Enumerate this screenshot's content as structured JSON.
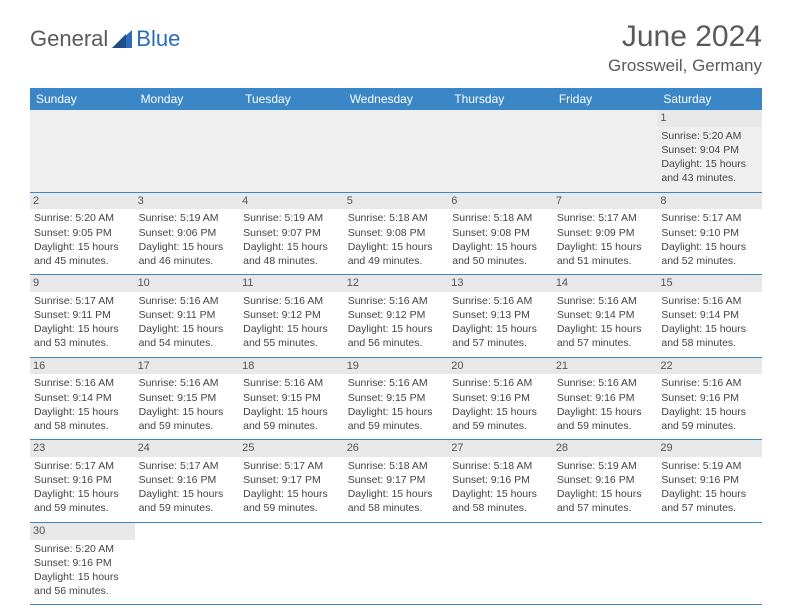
{
  "logo": {
    "textGeneral": "General",
    "textBlue": "Blue"
  },
  "title": "June 2024",
  "location": "Grossweil, Germany",
  "colors": {
    "headerBg": "#3b86c6",
    "headerText": "#ffffff",
    "dayNumBg": "#e8e8e8",
    "rowDivider": "#3b86c6",
    "firstRowBg": "#efefef",
    "bodyText": "#444444",
    "titleText": "#5a5a5a"
  },
  "dayHeaders": [
    "Sunday",
    "Monday",
    "Tuesday",
    "Wednesday",
    "Thursday",
    "Friday",
    "Saturday"
  ],
  "weeks": [
    [
      null,
      null,
      null,
      null,
      null,
      null,
      {
        "n": "1",
        "sr": "5:20 AM",
        "ss": "9:04 PM",
        "dh": "15",
        "dm": "43"
      }
    ],
    [
      {
        "n": "2",
        "sr": "5:20 AM",
        "ss": "9:05 PM",
        "dh": "15",
        "dm": "45"
      },
      {
        "n": "3",
        "sr": "5:19 AM",
        "ss": "9:06 PM",
        "dh": "15",
        "dm": "46"
      },
      {
        "n": "4",
        "sr": "5:19 AM",
        "ss": "9:07 PM",
        "dh": "15",
        "dm": "48"
      },
      {
        "n": "5",
        "sr": "5:18 AM",
        "ss": "9:08 PM",
        "dh": "15",
        "dm": "49"
      },
      {
        "n": "6",
        "sr": "5:18 AM",
        "ss": "9:08 PM",
        "dh": "15",
        "dm": "50"
      },
      {
        "n": "7",
        "sr": "5:17 AM",
        "ss": "9:09 PM",
        "dh": "15",
        "dm": "51"
      },
      {
        "n": "8",
        "sr": "5:17 AM",
        "ss": "9:10 PM",
        "dh": "15",
        "dm": "52"
      }
    ],
    [
      {
        "n": "9",
        "sr": "5:17 AM",
        "ss": "9:11 PM",
        "dh": "15",
        "dm": "53"
      },
      {
        "n": "10",
        "sr": "5:16 AM",
        "ss": "9:11 PM",
        "dh": "15",
        "dm": "54"
      },
      {
        "n": "11",
        "sr": "5:16 AM",
        "ss": "9:12 PM",
        "dh": "15",
        "dm": "55"
      },
      {
        "n": "12",
        "sr": "5:16 AM",
        "ss": "9:12 PM",
        "dh": "15",
        "dm": "56"
      },
      {
        "n": "13",
        "sr": "5:16 AM",
        "ss": "9:13 PM",
        "dh": "15",
        "dm": "57"
      },
      {
        "n": "14",
        "sr": "5:16 AM",
        "ss": "9:14 PM",
        "dh": "15",
        "dm": "57"
      },
      {
        "n": "15",
        "sr": "5:16 AM",
        "ss": "9:14 PM",
        "dh": "15",
        "dm": "58"
      }
    ],
    [
      {
        "n": "16",
        "sr": "5:16 AM",
        "ss": "9:14 PM",
        "dh": "15",
        "dm": "58"
      },
      {
        "n": "17",
        "sr": "5:16 AM",
        "ss": "9:15 PM",
        "dh": "15",
        "dm": "59"
      },
      {
        "n": "18",
        "sr": "5:16 AM",
        "ss": "9:15 PM",
        "dh": "15",
        "dm": "59"
      },
      {
        "n": "19",
        "sr": "5:16 AM",
        "ss": "9:15 PM",
        "dh": "15",
        "dm": "59"
      },
      {
        "n": "20",
        "sr": "5:16 AM",
        "ss": "9:16 PM",
        "dh": "15",
        "dm": "59"
      },
      {
        "n": "21",
        "sr": "5:16 AM",
        "ss": "9:16 PM",
        "dh": "15",
        "dm": "59"
      },
      {
        "n": "22",
        "sr": "5:16 AM",
        "ss": "9:16 PM",
        "dh": "15",
        "dm": "59"
      }
    ],
    [
      {
        "n": "23",
        "sr": "5:17 AM",
        "ss": "9:16 PM",
        "dh": "15",
        "dm": "59"
      },
      {
        "n": "24",
        "sr": "5:17 AM",
        "ss": "9:16 PM",
        "dh": "15",
        "dm": "59"
      },
      {
        "n": "25",
        "sr": "5:17 AM",
        "ss": "9:17 PM",
        "dh": "15",
        "dm": "59"
      },
      {
        "n": "26",
        "sr": "5:18 AM",
        "ss": "9:17 PM",
        "dh": "15",
        "dm": "58"
      },
      {
        "n": "27",
        "sr": "5:18 AM",
        "ss": "9:16 PM",
        "dh": "15",
        "dm": "58"
      },
      {
        "n": "28",
        "sr": "5:19 AM",
        "ss": "9:16 PM",
        "dh": "15",
        "dm": "57"
      },
      {
        "n": "29",
        "sr": "5:19 AM",
        "ss": "9:16 PM",
        "dh": "15",
        "dm": "57"
      }
    ],
    [
      {
        "n": "30",
        "sr": "5:20 AM",
        "ss": "9:16 PM",
        "dh": "15",
        "dm": "56"
      },
      null,
      null,
      null,
      null,
      null,
      null
    ]
  ],
  "labels": {
    "sunrise": "Sunrise:",
    "sunset": "Sunset:",
    "daylightPrefix": "Daylight:",
    "hoursWord": "hours",
    "andWord": "and",
    "minutesWord": "minutes."
  }
}
